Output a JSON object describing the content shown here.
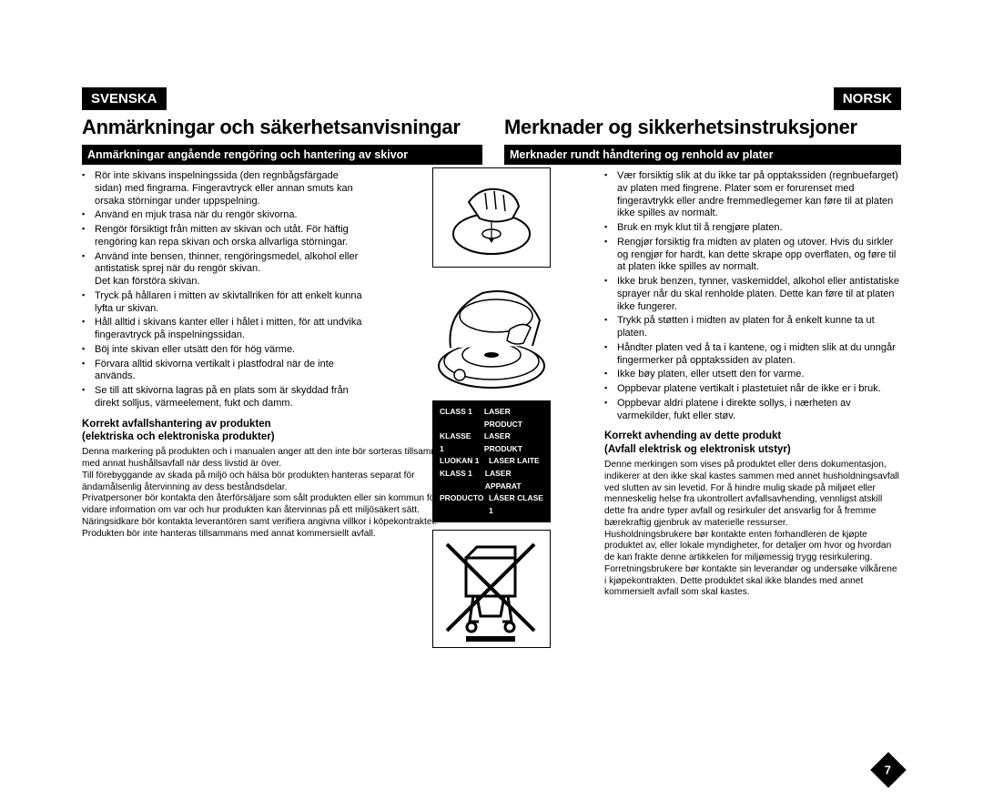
{
  "left": {
    "language": "SVENSKA",
    "title": "Anmärkningar och säkerhetsanvisningar",
    "subtitle": "Anmärkningar angående rengöring och hantering av skivor",
    "bullets": [
      "Rör inte skivans inspelningssida (den regnbågsfärgade sidan) med fingrarna. Fingeravtryck eller annan smuts kan orsaka störningar under uppspelning.",
      "Använd en mjuk trasa när du rengör skivorna.",
      "Rengör försiktigt från mitten av skivan och utåt. För häftig rengöring kan repa skivan och orska allvarliga störningar.",
      "Använd inte bensen, thinner, rengöringsmedel, alkohol eller antistatisk sprej när du rengör skivan.\nDet kan förstöra skivan.",
      "Tryck på hållaren i mitten av skivtallriken för att enkelt kunna lyfta ur skivan.",
      "Håll alltid i skivans kanter eller i hålet i mitten, för att undvika fingeravtryck på inspelningssidan.",
      "Böj inte skivan eller utsätt den för hög värme.",
      "Förvara alltid skivorna vertikalt i plastfodral när de inte används.",
      "Se till att skivorna lagras på en plats som är skyddad från direkt solljus, värmeelement, fukt och damm."
    ],
    "disposalHeading": "Korrekt avfallshantering av produkten\n(elektriska och elektroniska produkter)",
    "disposalText": "Denna markering på produkten och i manualen anger att den inte bör sorteras tillsammans med annat hushållsavfall när dess livstid är över.\nTill förebyggande av skada på miljö och hälsa bör produkten hanteras separat för ändamålsenlig återvinning av dess beståndsdelar.\nPrivatpersoner bör kontakta den återförsäljare som sålt produkten eller sin kommun för vidare information om var och hur produkten kan återvinnas på ett miljösäkert sätt. Näringsidkare bör kontakta leverantören samt verifiera angivna villkor i köpekontraktet. Produkten bör inte hanteras tillsammans med annat kommersiellt avfall."
  },
  "right": {
    "language": "NORSK",
    "title": "Merknader og sikkerhetsinstruksjoner",
    "subtitle": "Merknader rundt håndtering og renhold av plater",
    "bullets": [
      "Vær forsiktig slik at du ikke tar på opptakssiden (regnbuefarget) av platen med fingrene. Plater som er forurenset med fingeravtrykk eller andre fremmedlegemer kan føre til at platen ikke spilles av normalt.",
      "Bruk en myk klut til å rengjøre platen.",
      "Rengjør forsiktig fra midten av platen og utover. Hvis du sirkler og rengjør for hardt, kan dette skrape opp overflaten, og føre til at platen ikke spilles av normalt.",
      "Ikke bruk benzen, tynner, vaskemiddel, alkohol eller antistatiske sprayer når du skal renholde platen. Dette kan føre til at platen ikke fungerer.",
      "Trykk på støtten i midten av platen for å enkelt kunne ta ut platen.",
      "Håndter platen ved å ta i kantene, og i midten slik at du unngår fingermerker på opptakssiden av platen.",
      "Ikke bøy platen, eller utsett den for varme.",
      "Oppbevar platene vertikalt i plastetuiet når de ikke er i bruk.",
      "Oppbevar aldri platene i direkte sollys, i nærheten av varmekilder, fukt eller støv."
    ],
    "disposalHeading": "Korrekt avhending av dette produkt\n(Avfall elektrisk og elektronisk utstyr)",
    "disposalText": "Denne merkingen som vises på produktet eller dens dokumentasjon, indikerer at den ikke skal kastes sammen med annet husholdningsavfall ved slutten av sin levetid. For å hindre mulig skade på miljøet eller menneskelig helse fra ukontrollert avfallsavhending, vennligst atskill dette fra andre typer avfall og resirkuler det ansvarlig for å fremme bærekraftig gjenbruk av materielle ressurser.\nHusholdningsbrukere bør kontakte enten forhandleren de kjøpte produktet av, eller lokale myndigheter, for detaljer om hvor og hvordan de kan frakte denne artikkelen for miljømessig trygg resirkulering. Forretningsbrukere bør kontakte sin leverandør og undersøke vilkårene i kjøpekontrakten. Dette produktet skal ikke blandes med annet kommersielt avfall som skal kastes."
  },
  "laser": [
    [
      "CLASS 1",
      "LASER PRODUCT"
    ],
    [
      "KLASSE 1",
      "LASER PRODUKT"
    ],
    [
      "LUOKAN 1",
      "LASER LAITE"
    ],
    [
      "KLASS 1",
      "LASER APPARAT"
    ],
    [
      "PRODUCTO",
      "LÁSER CLASE 1"
    ]
  ],
  "pageNumber": "7"
}
